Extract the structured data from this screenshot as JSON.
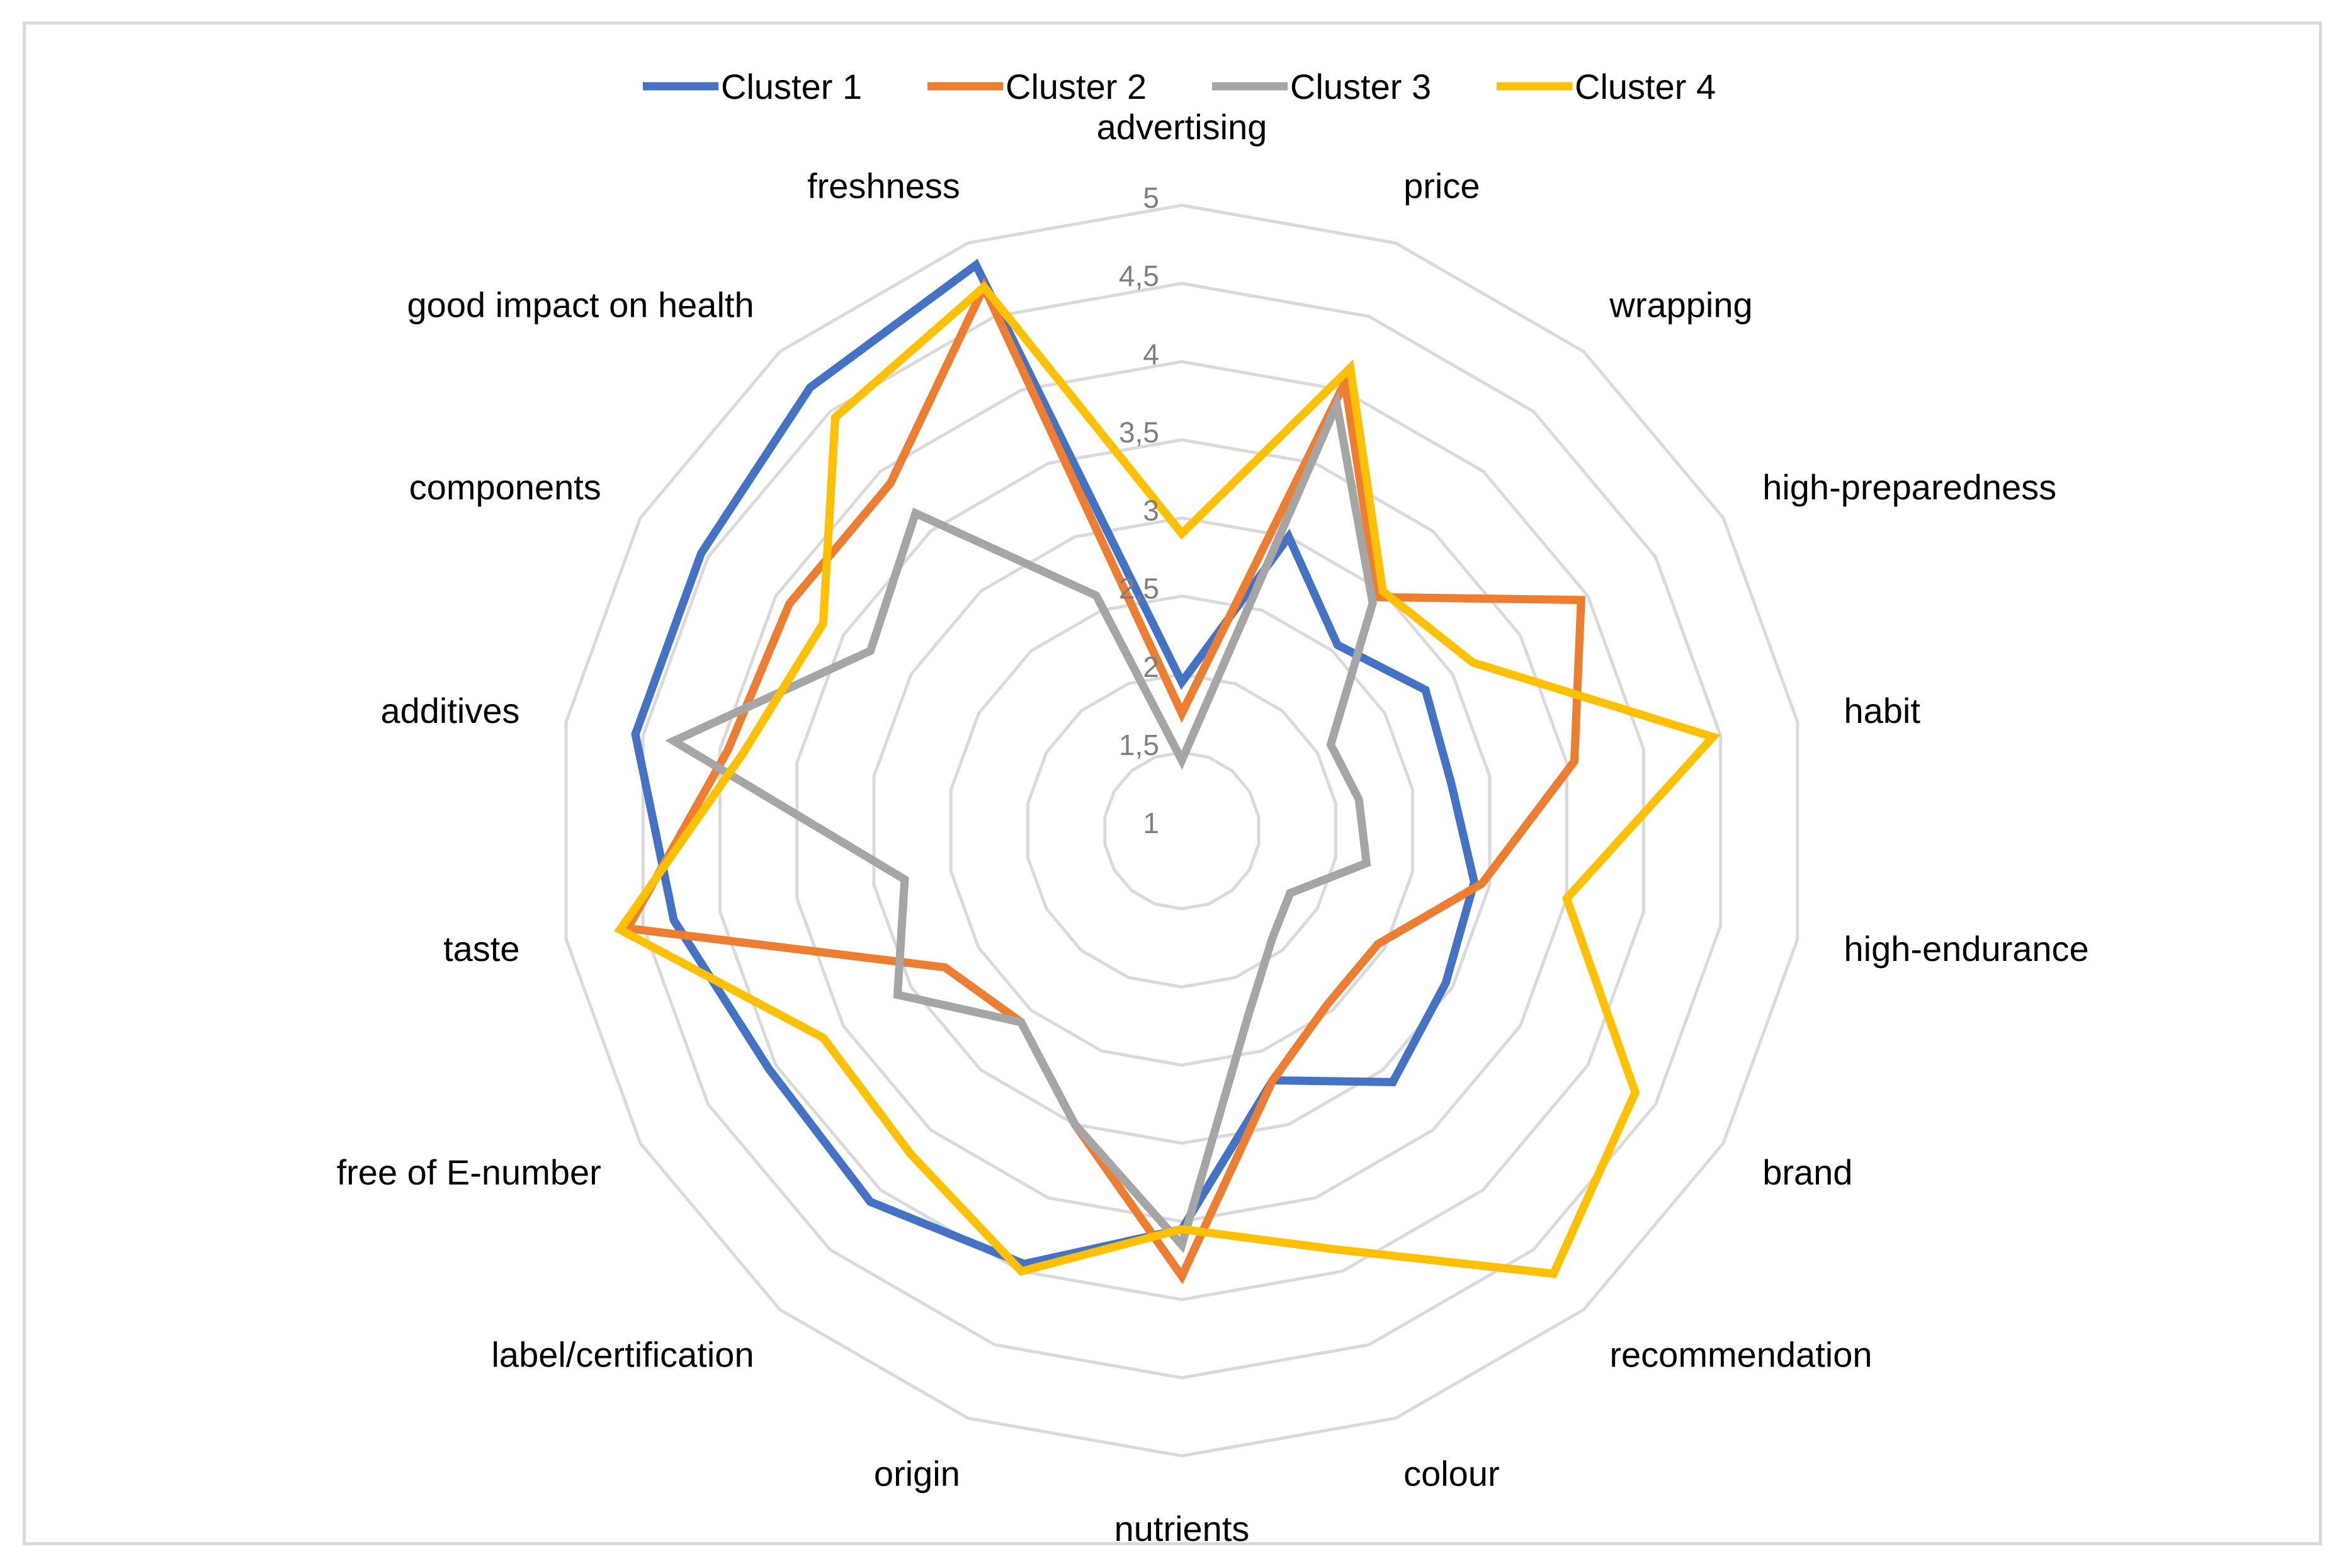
{
  "chart_data": {
    "type": "radar",
    "title": "",
    "categories": [
      "advertising",
      "price",
      "wrapping",
      "high-preparedness",
      "habit",
      "high-endurance",
      "brand",
      "recommendation",
      "colour",
      "nutrients",
      "origin",
      "label/certification",
      "free of E-number",
      "taste",
      "additives",
      "components",
      "good impact on health",
      "freshness"
    ],
    "tick_labels": [
      "1",
      "1,5",
      "2",
      "2,5",
      "3",
      "3,5",
      "4",
      "4,5",
      "5"
    ],
    "ticks": [
      1,
      1.5,
      2,
      2.5,
      3,
      3.5,
      4,
      4.5,
      5
    ],
    "rlim": [
      1,
      5
    ],
    "legend_position": "top",
    "series": [
      {
        "name": "Cluster 1",
        "color": "#4472C4",
        "values": [
          1.95,
          3.0,
          2.55,
          2.8,
          2.75,
          2.9,
          2.95,
          3.1,
          2.7,
          3.55,
          3.95,
          4.1,
          4.05,
          4.3,
          4.55,
          4.55,
          4.7,
          4.85
        ]
      },
      {
        "name": "Cluster 2",
        "color": "#ED7D31",
        "values": [
          1.75,
          4.05,
          2.95,
          3.95,
          3.55,
          2.95,
          2.45,
          2.45,
          2.7,
          3.85,
          3.0,
          2.6,
          2.75,
          4.6,
          3.95,
          3.9,
          3.9,
          4.7
        ]
      },
      {
        "name": "Cluster 3",
        "color": "#A5A5A5",
        "values": [
          1.45,
          3.9,
          2.9,
          2.1,
          2.15,
          2.2,
          1.8,
          1.9,
          2.25,
          3.65,
          3.0,
          2.6,
          3.1,
          2.8,
          4.3,
          3.3,
          3.65,
          2.6
        ]
      },
      {
        "name": "Cluster 4",
        "color": "#FFC000",
        "values": [
          2.9,
          4.15,
          3.0,
          3.15,
          4.45,
          3.5,
          4.35,
          4.7,
          3.85,
          3.55,
          4.0,
          3.7,
          3.65,
          4.65,
          3.85,
          3.65,
          4.45,
          4.7
        ]
      }
    ]
  }
}
